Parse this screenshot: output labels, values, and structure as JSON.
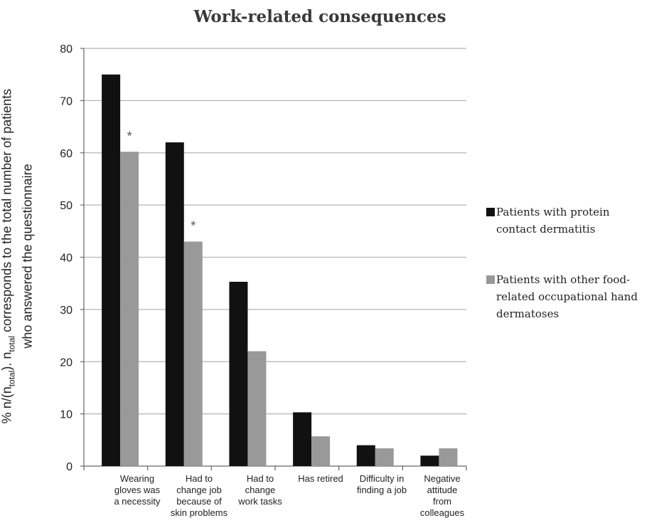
{
  "chart_data": {
    "type": "bar",
    "title": "Work-related consequences",
    "ylabel": {
      "pre": "% n/(n",
      "sub1": "total",
      "mid": "). n",
      "sub2": "total",
      "post": " corresponds to the total number of patients",
      "line2": "who answered the questionnaire"
    },
    "xlabel": "",
    "ylim": [
      0,
      80
    ],
    "yticks": [
      0,
      10,
      20,
      30,
      40,
      50,
      60,
      70,
      80
    ],
    "grid": true,
    "legend_position": "right",
    "categories": [
      [
        "Wearing",
        "gloves was",
        "a necessity"
      ],
      [
        "Had to",
        "change job",
        "because of",
        "skin problems"
      ],
      [
        "Had to",
        "change",
        "work tasks"
      ],
      [
        "Has retired"
      ],
      [
        "Difficulty in",
        "finding a job"
      ],
      [
        "Negative",
        "attitude",
        "from",
        "colleagues"
      ]
    ],
    "series": [
      {
        "name": [
          "Patients with protein",
          "contact dermatitis"
        ],
        "color": "#111111",
        "values": [
          75,
          62,
          35.3,
          10.3,
          4,
          2
        ]
      },
      {
        "name": [
          "Patients with other food-",
          "related occupational hand",
          "dermatoses"
        ],
        "color": "#999999",
        "values": [
          60.2,
          43,
          22,
          5.7,
          3.4,
          3.4
        ]
      }
    ],
    "annotations": [
      {
        "category_index": 0,
        "text": "*"
      },
      {
        "category_index": 1,
        "text": "*"
      }
    ]
  }
}
